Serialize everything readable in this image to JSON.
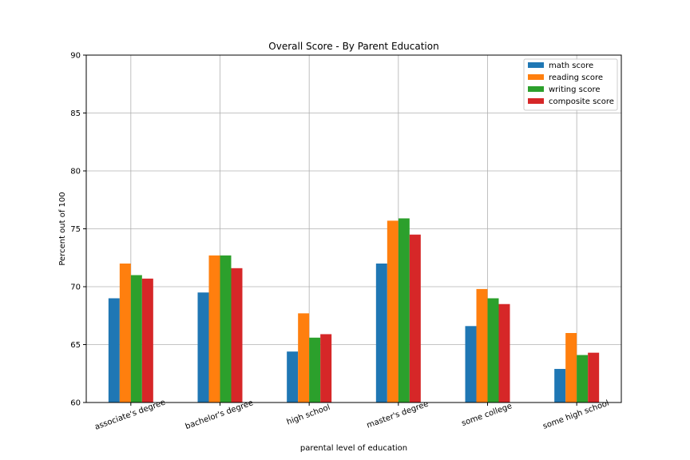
{
  "chart_data": {
    "type": "bar",
    "title": "Overall Score - By Parent Education",
    "xlabel": "parental level of education",
    "ylabel": "Percent out of 100",
    "ylim": [
      60,
      90
    ],
    "yticks": [
      60,
      65,
      70,
      75,
      80,
      85,
      90
    ],
    "grid": true,
    "legend_position": "top-right",
    "categories": [
      "associate's degree",
      "bachelor's degree",
      "high school",
      "master's degree",
      "some college",
      "some high school"
    ],
    "series": [
      {
        "name": "math score",
        "color": "#1f77b4",
        "values": [
          69.0,
          69.5,
          64.4,
          72.0,
          66.6,
          62.9
        ]
      },
      {
        "name": "reading score",
        "color": "#ff7f0e",
        "values": [
          72.0,
          72.7,
          67.7,
          75.7,
          69.8,
          66.0
        ]
      },
      {
        "name": "writing score",
        "color": "#2ca02c",
        "values": [
          71.0,
          72.7,
          65.6,
          75.9,
          69.0,
          64.1
        ]
      },
      {
        "name": "composite score",
        "color": "#d62728",
        "values": [
          70.7,
          71.6,
          65.9,
          74.5,
          68.5,
          64.3
        ]
      }
    ]
  }
}
